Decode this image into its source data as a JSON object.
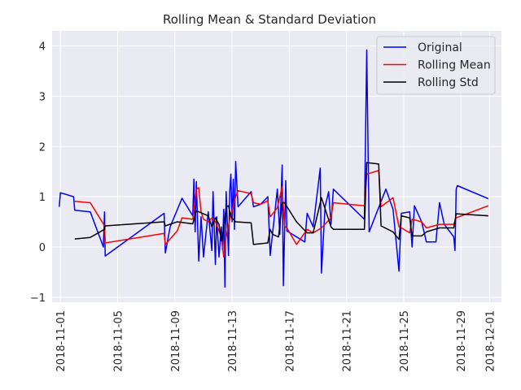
{
  "chart_data": {
    "type": "line",
    "title": "Rolling Mean & Standard Deviation",
    "xlabel": "",
    "ylabel": "",
    "xlim": [
      "2018-10-31T10:00",
      "2018-12-01T20:00"
    ],
    "ylim": [
      -1.1,
      4.3
    ],
    "y_ticks": [
      -1,
      0,
      1,
      2,
      3,
      4
    ],
    "x_ticks": [
      "2018-11-01",
      "2018-11-05",
      "2018-11-09",
      "2018-11-13",
      "2018-11-17",
      "2018-11-21",
      "2018-11-25",
      "2018-11-29",
      "2018-12-01"
    ],
    "grid": true,
    "legend_position": "top-right",
    "colors": {
      "Original": "#0000ff",
      "Rolling Mean": "#ff0000",
      "Rolling Std": "#000000",
      "plot_bg": "#eaeaf2",
      "grid": "#ffffff"
    },
    "series": [
      {
        "name": "Original",
        "points": [
          [
            "2018-10-31T22:00",
            0.8
          ],
          [
            "2018-11-01T00:00",
            1.08
          ],
          [
            "2018-11-01T22:00",
            1.0
          ],
          [
            "2018-11-02T00:00",
            0.73
          ],
          [
            "2018-11-03T02:00",
            0.7
          ],
          [
            "2018-11-04T00:00",
            0.0
          ],
          [
            "2018-11-04T02:00",
            0.7
          ],
          [
            "2018-11-04T03:00",
            -0.18
          ],
          [
            "2018-11-08T06:00",
            0.67
          ],
          [
            "2018-11-08T08:00",
            -0.12
          ],
          [
            "2018-11-08T16:00",
            0.4
          ],
          [
            "2018-11-09T12:00",
            0.97
          ],
          [
            "2018-11-10T06:00",
            0.62
          ],
          [
            "2018-11-10T08:00",
            1.35
          ],
          [
            "2018-11-10T10:00",
            0.3
          ],
          [
            "2018-11-10T12:00",
            1.3
          ],
          [
            "2018-11-10T16:00",
            -0.28
          ],
          [
            "2018-11-10T20:00",
            0.6
          ],
          [
            "2018-11-11T00:00",
            -0.2
          ],
          [
            "2018-11-11T08:00",
            0.7
          ],
          [
            "2018-11-11T14:00",
            -0.07
          ],
          [
            "2018-11-11T16:00",
            1.1
          ],
          [
            "2018-11-11T20:00",
            -0.35
          ],
          [
            "2018-11-11T22:00",
            0.6
          ],
          [
            "2018-11-12T02:00",
            -0.2
          ],
          [
            "2018-11-12T06:00",
            0.4
          ],
          [
            "2018-11-12T08:00",
            -0.05
          ],
          [
            "2018-11-12T10:00",
            0.75
          ],
          [
            "2018-11-12T12:00",
            -0.8
          ],
          [
            "2018-11-12T14:00",
            1.1
          ],
          [
            "2018-11-12T18:00",
            -0.17
          ],
          [
            "2018-11-12T20:00",
            1.1
          ],
          [
            "2018-11-12T22:00",
            1.45
          ],
          [
            "2018-11-13T00:00",
            0.5
          ],
          [
            "2018-11-13T02:00",
            1.35
          ],
          [
            "2018-11-13T04:00",
            0.35
          ],
          [
            "2018-11-13T06:00",
            1.7
          ],
          [
            "2018-11-13T10:00",
            0.8
          ],
          [
            "2018-11-14T08:00",
            1.1
          ],
          [
            "2018-11-14T12:00",
            0.8
          ],
          [
            "2018-11-15T00:00",
            0.85
          ],
          [
            "2018-11-15T12:00",
            1.0
          ],
          [
            "2018-11-15T16:00",
            -0.17
          ],
          [
            "2018-11-16T04:00",
            1.15
          ],
          [
            "2018-11-16T08:00",
            0.25
          ],
          [
            "2018-11-16T12:00",
            1.63
          ],
          [
            "2018-11-16T14:00",
            -0.77
          ],
          [
            "2018-11-16T18:00",
            1.32
          ],
          [
            "2018-11-16T20:00",
            0.32
          ],
          [
            "2018-11-18T02:00",
            0.1
          ],
          [
            "2018-11-18T06:00",
            0.67
          ],
          [
            "2018-11-18T16:00",
            0.4
          ],
          [
            "2018-11-19T04:00",
            1.57
          ],
          [
            "2018-11-19T06:00",
            -0.52
          ],
          [
            "2018-11-19T12:00",
            0.8
          ],
          [
            "2018-11-19T18:00",
            1.1
          ],
          [
            "2018-11-19T22:00",
            0.45
          ],
          [
            "2018-11-20T02:00",
            1.15
          ],
          [
            "2018-11-22T06:00",
            0.55
          ],
          [
            "2018-11-22T10:00",
            3.92
          ],
          [
            "2018-11-22T14:00",
            0.3
          ],
          [
            "2018-11-23T18:00",
            1.15
          ],
          [
            "2018-11-24T06:00",
            0.75
          ],
          [
            "2018-11-24T16:00",
            -0.48
          ],
          [
            "2018-11-24T20:00",
            0.67
          ],
          [
            "2018-11-25T10:00",
            0.7
          ],
          [
            "2018-11-25T14:00",
            0.0
          ],
          [
            "2018-11-25T18:00",
            0.82
          ],
          [
            "2018-11-26T06:00",
            0.5
          ],
          [
            "2018-11-26T14:00",
            0.1
          ],
          [
            "2018-11-27T06:00",
            0.1
          ],
          [
            "2018-11-27T12:00",
            0.88
          ],
          [
            "2018-11-27T20:00",
            0.45
          ],
          [
            "2018-11-28T12:00",
            0.2
          ],
          [
            "2018-11-28T14:00",
            -0.07
          ],
          [
            "2018-11-28T16:00",
            1.15
          ],
          [
            "2018-11-28T18:00",
            1.22
          ],
          [
            "2018-11-30T22:00",
            0.96
          ]
        ]
      },
      {
        "name": "Rolling Mean",
        "points": [
          [
            "2018-11-02T00:00",
            0.91
          ],
          [
            "2018-11-03T02:00",
            0.88
          ],
          [
            "2018-11-04T02:00",
            0.42
          ],
          [
            "2018-11-04T03:00",
            0.08
          ],
          [
            "2018-11-08T06:00",
            0.27
          ],
          [
            "2018-11-08T08:00",
            0.05
          ],
          [
            "2018-11-09T04:00",
            0.32
          ],
          [
            "2018-11-09T12:00",
            0.58
          ],
          [
            "2018-11-10T06:00",
            0.55
          ],
          [
            "2018-11-10T12:00",
            1.15
          ],
          [
            "2018-11-10T16:00",
            1.18
          ],
          [
            "2018-11-10T20:00",
            0.7
          ],
          [
            "2018-11-11T00:00",
            0.55
          ],
          [
            "2018-11-11T08:00",
            0.5
          ],
          [
            "2018-11-11T14:00",
            0.58
          ],
          [
            "2018-11-11T20:00",
            0.5
          ],
          [
            "2018-11-12T02:00",
            0.32
          ],
          [
            "2018-11-12T06:00",
            0.2
          ],
          [
            "2018-11-12T10:00",
            -0.2
          ],
          [
            "2018-11-12T14:00",
            0.2
          ],
          [
            "2018-11-12T22:00",
            0.65
          ],
          [
            "2018-11-13T06:00",
            1.0
          ],
          [
            "2018-11-13T10:00",
            1.12
          ],
          [
            "2018-11-14T08:00",
            1.06
          ],
          [
            "2018-11-14T12:00",
            0.88
          ],
          [
            "2018-11-15T00:00",
            0.85
          ],
          [
            "2018-11-15T12:00",
            0.92
          ],
          [
            "2018-11-15T16:00",
            0.6
          ],
          [
            "2018-11-16T04:00",
            0.78
          ],
          [
            "2018-11-16T12:00",
            1.2
          ],
          [
            "2018-11-16T16:00",
            0.42
          ],
          [
            "2018-11-16T20:00",
            0.38
          ],
          [
            "2018-11-17T12:00",
            0.05
          ],
          [
            "2018-11-18T06:00",
            0.35
          ],
          [
            "2018-11-18T16:00",
            0.28
          ],
          [
            "2018-11-19T06:00",
            0.38
          ],
          [
            "2018-11-19T22:00",
            0.58
          ],
          [
            "2018-11-20T02:00",
            0.88
          ],
          [
            "2018-11-22T06:00",
            0.82
          ],
          [
            "2018-11-22T10:00",
            1.45
          ],
          [
            "2018-11-23T06:00",
            1.52
          ],
          [
            "2018-11-23T10:00",
            0.8
          ],
          [
            "2018-11-24T06:00",
            0.98
          ],
          [
            "2018-11-24T16:00",
            0.4
          ],
          [
            "2018-11-24T20:00",
            0.38
          ],
          [
            "2018-11-25T10:00",
            0.28
          ],
          [
            "2018-11-25T14:00",
            0.55
          ],
          [
            "2018-11-26T06:00",
            0.5
          ],
          [
            "2018-11-26T14:00",
            0.38
          ],
          [
            "2018-11-27T12:00",
            0.45
          ],
          [
            "2018-11-28T12:00",
            0.45
          ],
          [
            "2018-11-28T16:00",
            0.58
          ],
          [
            "2018-11-30T22:00",
            0.82
          ]
        ]
      },
      {
        "name": "Rolling Std",
        "points": [
          [
            "2018-11-02T00:00",
            0.16
          ],
          [
            "2018-11-03T02:00",
            0.19
          ],
          [
            "2018-11-04T02:00",
            0.35
          ],
          [
            "2018-11-04T03:00",
            0.42
          ],
          [
            "2018-11-08T06:00",
            0.5
          ],
          [
            "2018-11-08T08:00",
            0.42
          ],
          [
            "2018-11-09T04:00",
            0.5
          ],
          [
            "2018-11-10T06:00",
            0.46
          ],
          [
            "2018-11-10T10:00",
            0.65
          ],
          [
            "2018-11-10T12:00",
            0.72
          ],
          [
            "2018-11-11T08:00",
            0.62
          ],
          [
            "2018-11-11T14:00",
            0.4
          ],
          [
            "2018-11-11T20:00",
            0.58
          ],
          [
            "2018-11-12T02:00",
            0.45
          ],
          [
            "2018-11-12T06:00",
            0.12
          ],
          [
            "2018-11-12T10:00",
            0.35
          ],
          [
            "2018-11-12T14:00",
            0.8
          ],
          [
            "2018-11-12T18:00",
            0.82
          ],
          [
            "2018-11-12T22:00",
            0.6
          ],
          [
            "2018-11-13T06:00",
            0.5
          ],
          [
            "2018-11-14T08:00",
            0.48
          ],
          [
            "2018-11-14T12:00",
            0.05
          ],
          [
            "2018-11-15T12:00",
            0.08
          ],
          [
            "2018-11-15T16:00",
            0.35
          ],
          [
            "2018-11-15T20:00",
            0.25
          ],
          [
            "2018-11-16T06:00",
            0.2
          ],
          [
            "2018-11-16T12:00",
            0.88
          ],
          [
            "2018-11-16T16:00",
            0.88
          ],
          [
            "2018-11-17T12:00",
            0.5
          ],
          [
            "2018-11-18T06:00",
            0.28
          ],
          [
            "2018-11-18T16:00",
            0.28
          ],
          [
            "2018-11-19T06:00",
            0.98
          ],
          [
            "2018-11-19T22:00",
            0.4
          ],
          [
            "2018-11-20T02:00",
            0.35
          ],
          [
            "2018-11-22T06:00",
            0.35
          ],
          [
            "2018-11-22T10:00",
            1.68
          ],
          [
            "2018-11-23T06:00",
            1.65
          ],
          [
            "2018-11-23T10:00",
            0.42
          ],
          [
            "2018-11-24T06:00",
            0.3
          ],
          [
            "2018-11-24T16:00",
            0.15
          ],
          [
            "2018-11-24T20:00",
            0.62
          ],
          [
            "2018-11-25T10:00",
            0.58
          ],
          [
            "2018-11-25T14:00",
            0.22
          ],
          [
            "2018-11-26T06:00",
            0.22
          ],
          [
            "2018-11-26T14:00",
            0.3
          ],
          [
            "2018-11-27T12:00",
            0.38
          ],
          [
            "2018-11-28T12:00",
            0.38
          ],
          [
            "2018-11-28T16:00",
            0.66
          ],
          [
            "2018-11-30T22:00",
            0.62
          ]
        ]
      }
    ]
  }
}
